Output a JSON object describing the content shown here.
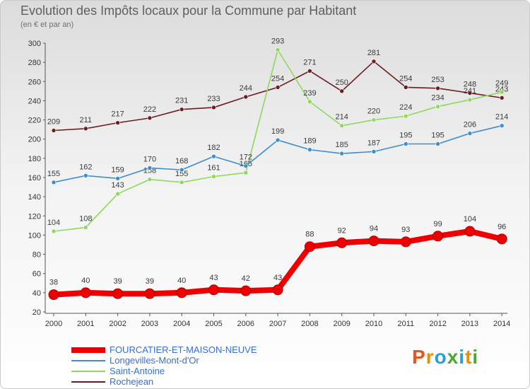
{
  "header": {
    "title": "Evolution des Impôts locaux pour la Commune par Habitant",
    "subtitle": "(en € et par an)"
  },
  "logo": {
    "text": "Proxiti",
    "colors": [
      "#e8541e",
      "#f08c00",
      "#2a9fd6",
      "#48a832",
      "#2a9fd6",
      "#f08c00",
      "#48a832"
    ]
  },
  "chart_data": {
    "type": "line",
    "title": "Evolution des Impôts locaux pour la Commune par Habitant",
    "ylabel": "(en € et par an)",
    "xlabel": "",
    "ylim": [
      20,
      300
    ],
    "yticks": [
      20,
      40,
      60,
      80,
      100,
      120,
      140,
      160,
      180,
      200,
      220,
      240,
      260,
      280,
      300
    ],
    "grid": false,
    "legend_position": "bottom-left",
    "categories": [
      "2000",
      "2001",
      "2002",
      "2003",
      "2004",
      "2005",
      "2006",
      "2007",
      "2008",
      "2009",
      "2010",
      "2011",
      "2012",
      "2013",
      "2014"
    ],
    "series": [
      {
        "name": "Rochejean",
        "color": "#6b1e22",
        "values": [
          209,
          211,
          217,
          222,
          231,
          233,
          244,
          254,
          271,
          250,
          281,
          254,
          253,
          248,
          243
        ],
        "labels": [
          "209",
          "211",
          "217",
          "222",
          "231",
          "233",
          "244",
          "254",
          "271",
          "250",
          "281",
          "254",
          "253",
          "248",
          "243"
        ]
      },
      {
        "name": "Saint-Antoine",
        "color": "#8ed85a",
        "values": [
          104,
          108,
          143,
          158,
          155,
          161,
          165,
          293,
          239,
          214,
          220,
          224,
          234,
          241,
          249
        ],
        "labels": [
          "104",
          "108",
          "143",
          "158",
          "155",
          "161",
          "165",
          "293",
          "239",
          "214",
          "220",
          "224",
          "234",
          "241",
          "249"
        ]
      },
      {
        "name": "Longevilles-Mont-d'Or",
        "color": "#3a8fd0",
        "values": [
          155,
          162,
          159,
          170,
          168,
          182,
          172,
          199,
          189,
          185,
          187,
          195,
          195,
          206,
          214
        ],
        "labels": [
          "155",
          "162",
          "159",
          "170",
          "168",
          "182",
          "172",
          "199",
          "189",
          "185",
          "187",
          "195",
          "195",
          "206",
          "214"
        ]
      },
      {
        "name": "FOURCATIER-ET-MAISON-NEUVE",
        "color": "#ee0000",
        "values": [
          38,
          40,
          39,
          39,
          40,
          43,
          42,
          43,
          88,
          92,
          94,
          93,
          99,
          104,
          96
        ],
        "labels": [
          "38",
          "40",
          "39",
          "39",
          "40",
          "43",
          "42",
          "43",
          "88",
          "92",
          "94",
          "93",
          "99",
          "104",
          "96"
        ]
      }
    ]
  }
}
